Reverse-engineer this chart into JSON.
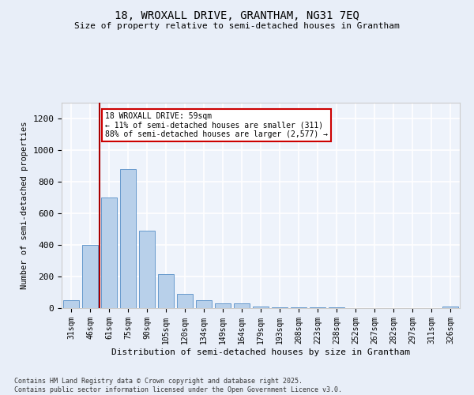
{
  "title1": "18, WROXALL DRIVE, GRANTHAM, NG31 7EQ",
  "title2": "Size of property relative to semi-detached houses in Grantham",
  "xlabel": "Distribution of semi-detached houses by size in Grantham",
  "ylabel": "Number of semi-detached properties",
  "categories": [
    "31sqm",
    "46sqm",
    "61sqm",
    "75sqm",
    "90sqm",
    "105sqm",
    "120sqm",
    "134sqm",
    "149sqm",
    "164sqm",
    "179sqm",
    "193sqm",
    "208sqm",
    "223sqm",
    "238sqm",
    "252sqm",
    "267sqm",
    "282sqm",
    "297sqm",
    "311sqm",
    "326sqm"
  ],
  "values": [
    50,
    400,
    700,
    880,
    490,
    215,
    90,
    50,
    30,
    30,
    10,
    5,
    5,
    5,
    5,
    2,
    2,
    2,
    2,
    2,
    10
  ],
  "bar_color": "#b8d0ea",
  "bar_edge_color": "#6699cc",
  "vline_color": "#aa0000",
  "annotation_title": "18 WROXALL DRIVE: 59sqm",
  "annotation_line1": "← 11% of semi-detached houses are smaller (311)",
  "annotation_line2": "88% of semi-detached houses are larger (2,577) →",
  "annotation_box_edgecolor": "#cc0000",
  "ylim": [
    0,
    1300
  ],
  "yticks": [
    0,
    200,
    400,
    600,
    800,
    1000,
    1200
  ],
  "footer1": "Contains HM Land Registry data © Crown copyright and database right 2025.",
  "footer2": "Contains public sector information licensed under the Open Government Licence v3.0.",
  "bg_color": "#e8eef8",
  "plot_bg_color": "#eef3fb",
  "grid_color": "#ffffff",
  "spine_color": "#cccccc"
}
